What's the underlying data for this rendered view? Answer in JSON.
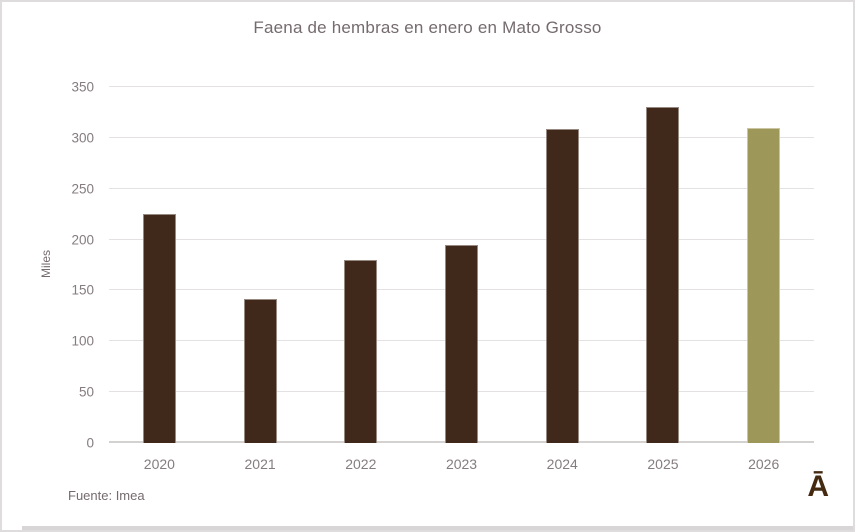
{
  "title": "Faena de hembras en enero en Mato Grosso",
  "source_note": "Fuente: Imea",
  "brand_logo": "Ā",
  "chart_data": {
    "type": "bar",
    "title": "Faena de hembras en enero en Mato Grosso",
    "categories": [
      "2020",
      "2021",
      "2022",
      "2023",
      "2024",
      "2025",
      "2026"
    ],
    "values": [
      225,
      142,
      180,
      195,
      309,
      330,
      310
    ],
    "xlabel": "",
    "ylabel": "Miles",
    "ylim": [
      0,
      350
    ],
    "yticks": [
      0,
      50,
      100,
      150,
      200,
      250,
      300,
      350
    ],
    "grid": true,
    "legend": false,
    "highlight_index": 6,
    "source": "Fuente: Imea"
  },
  "colors": {
    "bar_default": "#40291A",
    "bar_highlight": "#9E975A",
    "title_text": "#756B6E",
    "tick_text": "#857C80",
    "gridline": "#E3E1E1",
    "baseline": "#D4D1D1",
    "canvas_border": "#DEDCDC",
    "bottom_strip": "#D8D6D6",
    "logo": "#452A12"
  }
}
